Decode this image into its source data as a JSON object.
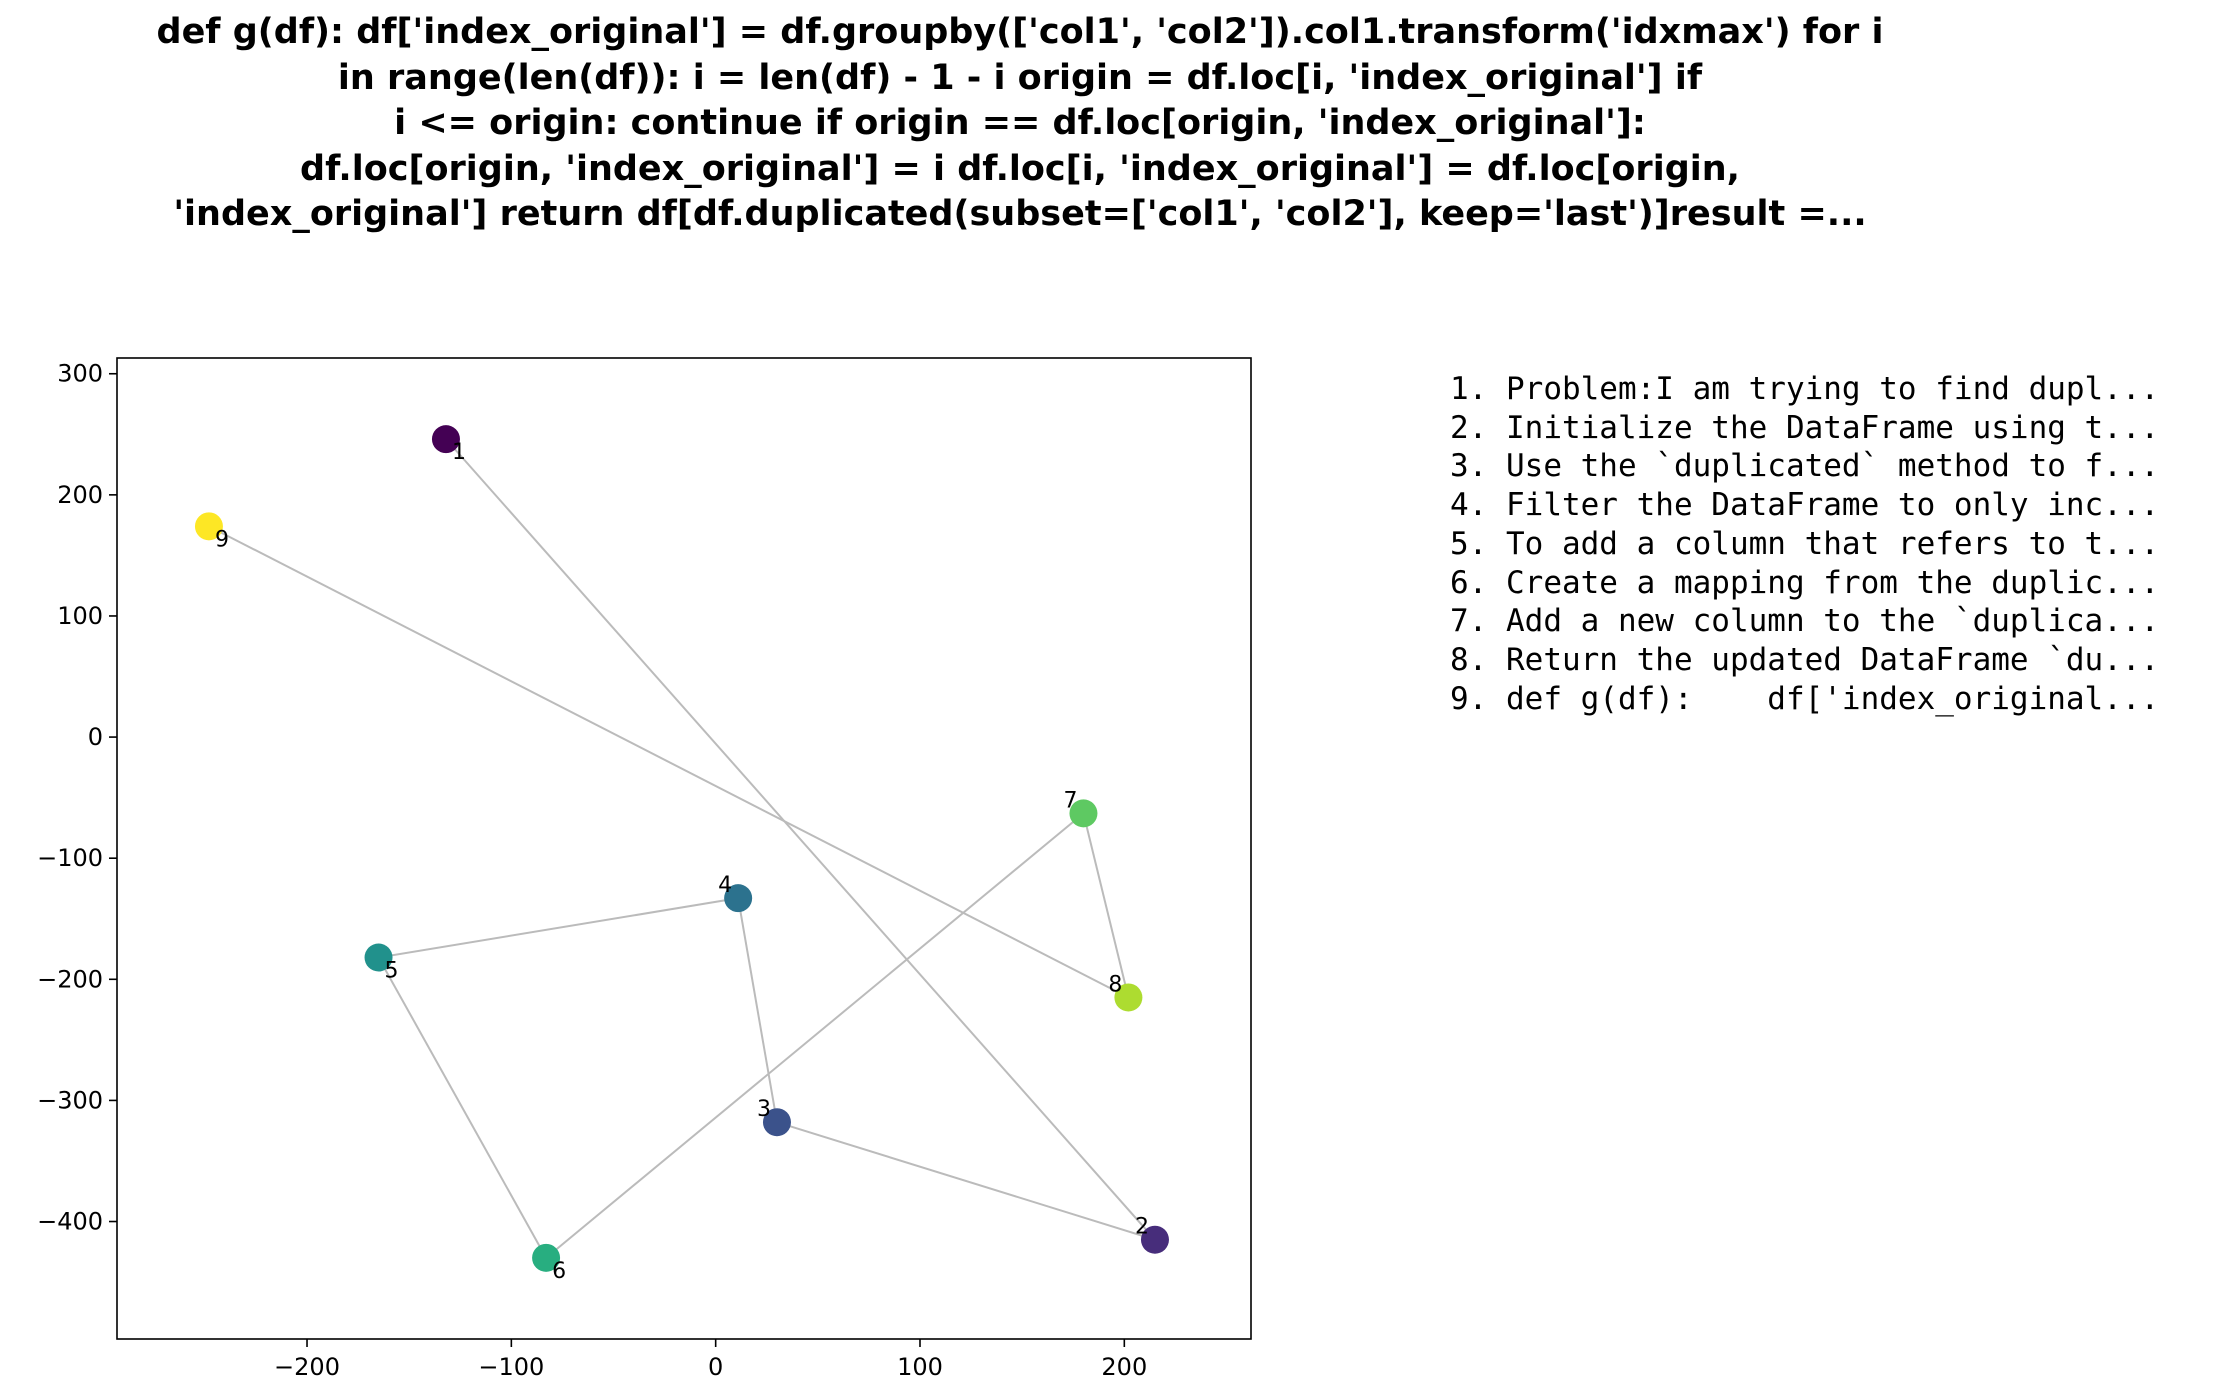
{
  "chart_data": {
    "type": "scatter",
    "title": "def g(df):    df['index_original'] = df.groupby(['col1', 'col2']).col1.transform('idxmax')    for i\nin range(len(df)):        i = len(df) - 1 - i        origin = df.loc[i, 'index_original']        if\ni <= origin:            continue        if origin == df.loc[origin, 'index_original']:\ndf.loc[origin, 'index_original'] = i        df.loc[i, 'index_original'] = df.loc[origin,\n'index_original']    return df[df.duplicated(subset=['col1', 'col2'], keep='last')]result =...",
    "xlim": [
      -293,
      262
    ],
    "ylim": [
      -497,
      313
    ],
    "xticks": [
      -200,
      -100,
      0,
      100,
      200
    ],
    "yticks": [
      300,
      200,
      100,
      0,
      -100,
      -200,
      -300,
      -400
    ],
    "grid": false,
    "line_color": "#bbbbbb",
    "points": [
      {
        "label": "1",
        "x": -132,
        "y": 246,
        "color": "#440154"
      },
      {
        "label": "2",
        "x": 215,
        "y": -415,
        "color": "#472d7b"
      },
      {
        "label": "3",
        "x": 30,
        "y": -318,
        "color": "#3b528b"
      },
      {
        "label": "4",
        "x": 11,
        "y": -133,
        "color": "#2c728e"
      },
      {
        "label": "5",
        "x": -165,
        "y": -182,
        "color": "#21918c"
      },
      {
        "label": "6",
        "x": -83,
        "y": -430,
        "color": "#28ae80"
      },
      {
        "label": "7",
        "x": 180,
        "y": -63,
        "color": "#5ec962"
      },
      {
        "label": "8",
        "x": 202,
        "y": -215,
        "color": "#addc30"
      },
      {
        "label": "9",
        "x": -248,
        "y": 174,
        "color": "#fde725"
      }
    ],
    "steps": [
      "1. Problem:I am trying to find dupl...",
      "2. Initialize the DataFrame using t...",
      "3. Use the `duplicated` method to f...",
      "4. Filter the DataFrame to only inc...",
      "5. To add a column that refers to t...",
      "6. Create a mapping from the duplic...",
      "7. Add a new column to the `duplica...",
      "8. Return the updated DataFrame `du...",
      "9. def g(df):    df['index_original..."
    ]
  }
}
